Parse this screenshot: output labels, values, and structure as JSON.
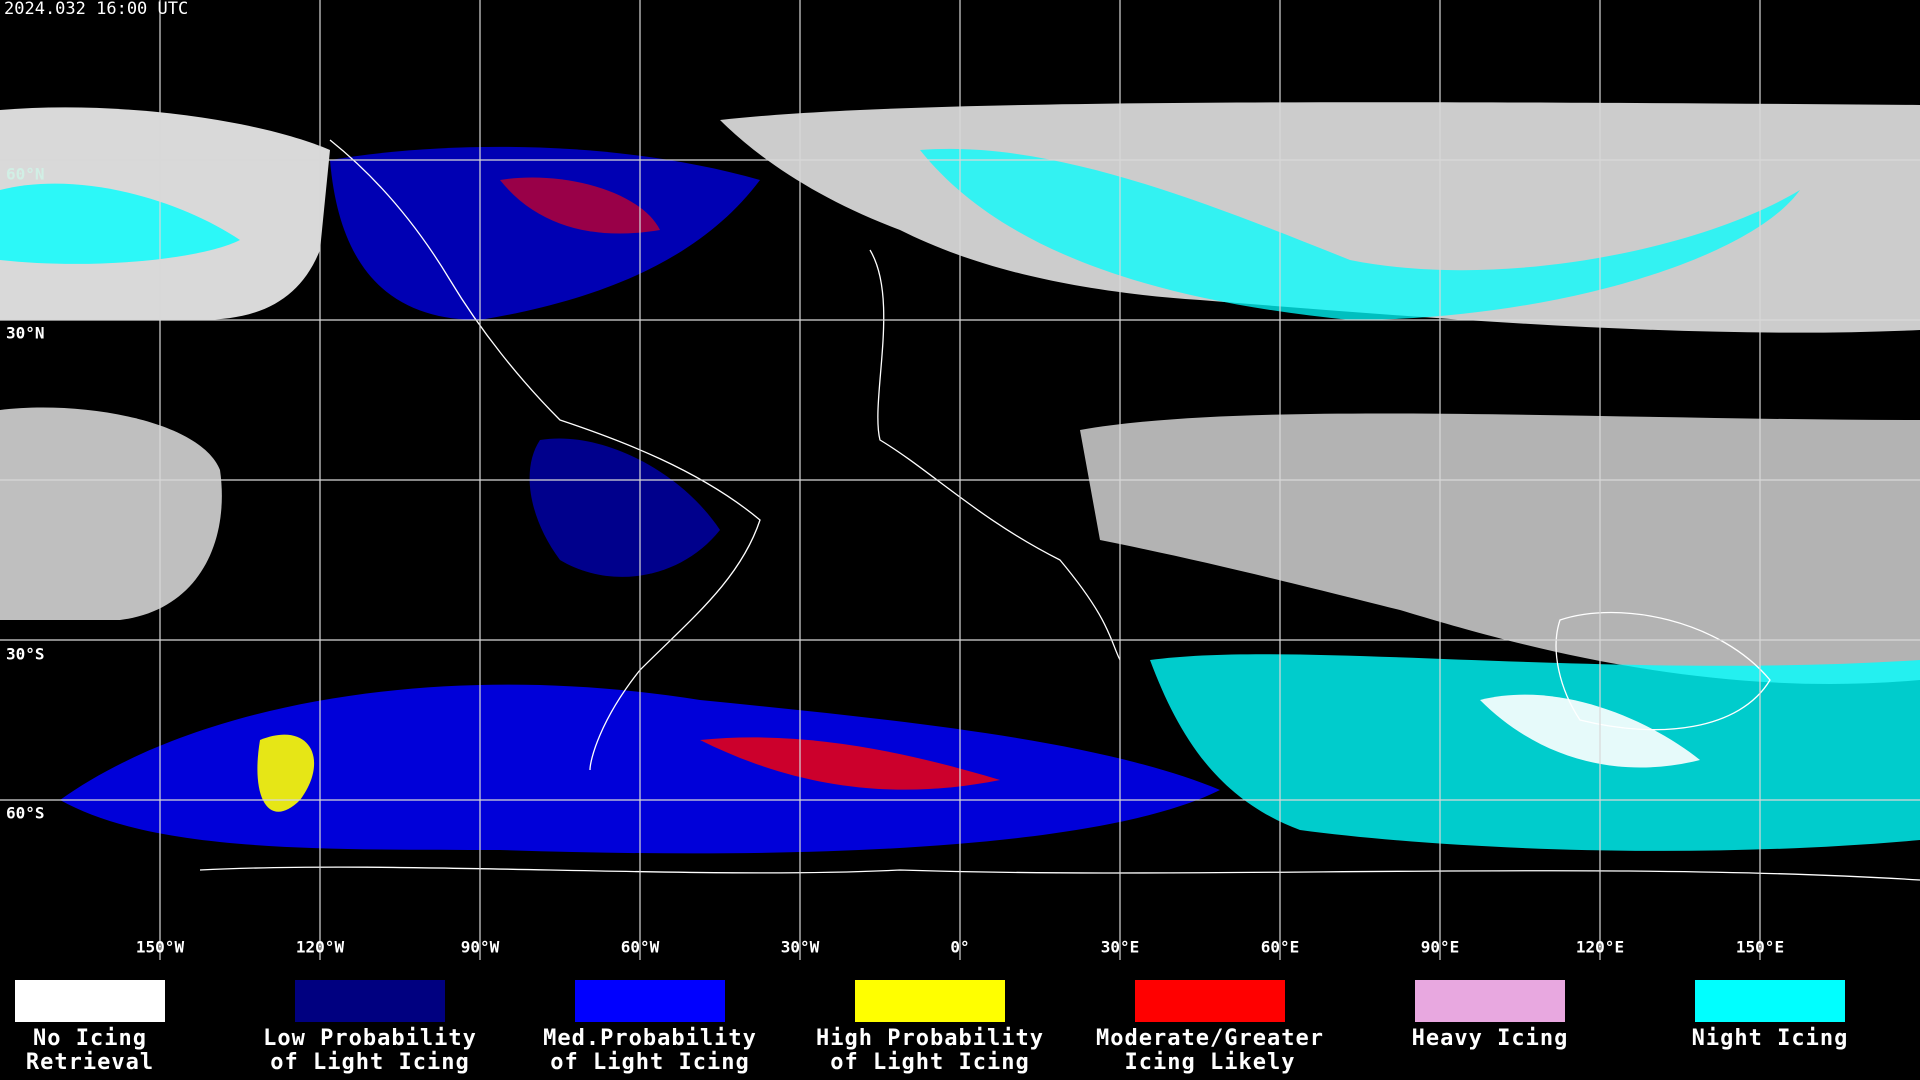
{
  "header": {
    "timestamp": "2024.032 16:00 UTC"
  },
  "map": {
    "lat_labels": [
      "60°N",
      "30°N",
      "30°S",
      "60°S"
    ],
    "lon_labels": [
      "150°W",
      "120°W",
      "90°W",
      "60°W",
      "30°W",
      "0°",
      "30°E",
      "60°E",
      "90°E",
      "120°E",
      "150°E"
    ]
  },
  "legend": {
    "items": [
      {
        "lines": [
          "No Icing",
          "Retrieval"
        ],
        "color": "#ffffff"
      },
      {
        "lines": [
          "Low Probability",
          "of Light Icing"
        ],
        "color": "#000080"
      },
      {
        "lines": [
          "Med.Probability",
          "of Light Icing"
        ],
        "color": "#0000ff"
      },
      {
        "lines": [
          "High Probability",
          "of Light Icing"
        ],
        "color": "#ffff00"
      },
      {
        "lines": [
          "Moderate/Greater",
          "Icing Likely"
        ],
        "color": "#ff0000"
      },
      {
        "lines": [
          "Heavy Icing"
        ],
        "color": "#e8a8e0"
      },
      {
        "lines": [
          "Night Icing"
        ],
        "color": "#00ffff"
      }
    ]
  }
}
